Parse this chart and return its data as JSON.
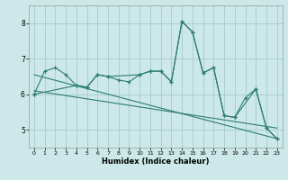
{
  "title": "",
  "xlabel": "Humidex (Indice chaleur)",
  "bg_color": "#cce8e8",
  "grid_color": "#aacfcf",
  "line_color": "#2e7d72",
  "xlim": [
    -0.5,
    23.5
  ],
  "ylim": [
    4.5,
    8.5
  ],
  "xticks": [
    0,
    1,
    2,
    3,
    4,
    5,
    6,
    7,
    8,
    9,
    10,
    11,
    12,
    13,
    14,
    15,
    16,
    17,
    18,
    19,
    20,
    21,
    22,
    23
  ],
  "yticks": [
    5,
    6,
    7,
    8
  ],
  "line1_x": [
    0,
    1,
    2,
    3,
    4,
    5,
    6,
    7,
    8,
    9,
    10,
    11,
    12,
    13,
    14,
    15,
    16,
    17,
    18,
    19,
    20,
    21,
    22,
    23
  ],
  "line1_y": [
    6.0,
    6.65,
    6.75,
    6.55,
    6.25,
    6.2,
    6.55,
    6.5,
    6.4,
    6.35,
    6.55,
    6.65,
    6.65,
    6.35,
    8.05,
    7.75,
    6.6,
    6.75,
    5.4,
    5.35,
    5.9,
    6.15,
    5.05,
    4.75
  ],
  "line2_x": [
    0,
    4,
    5,
    6,
    7,
    10,
    11,
    12,
    13,
    14,
    15,
    16,
    17,
    18,
    19,
    21,
    22,
    23
  ],
  "line2_y": [
    6.0,
    6.25,
    6.2,
    6.55,
    6.5,
    6.55,
    6.65,
    6.65,
    6.35,
    8.05,
    7.75,
    6.6,
    6.75,
    5.4,
    5.35,
    6.15,
    5.05,
    4.75
  ],
  "line3_x": [
    0,
    23
  ],
  "line3_y": [
    6.55,
    4.75
  ],
  "line4_x": [
    0,
    23
  ],
  "line4_y": [
    6.1,
    5.05
  ]
}
